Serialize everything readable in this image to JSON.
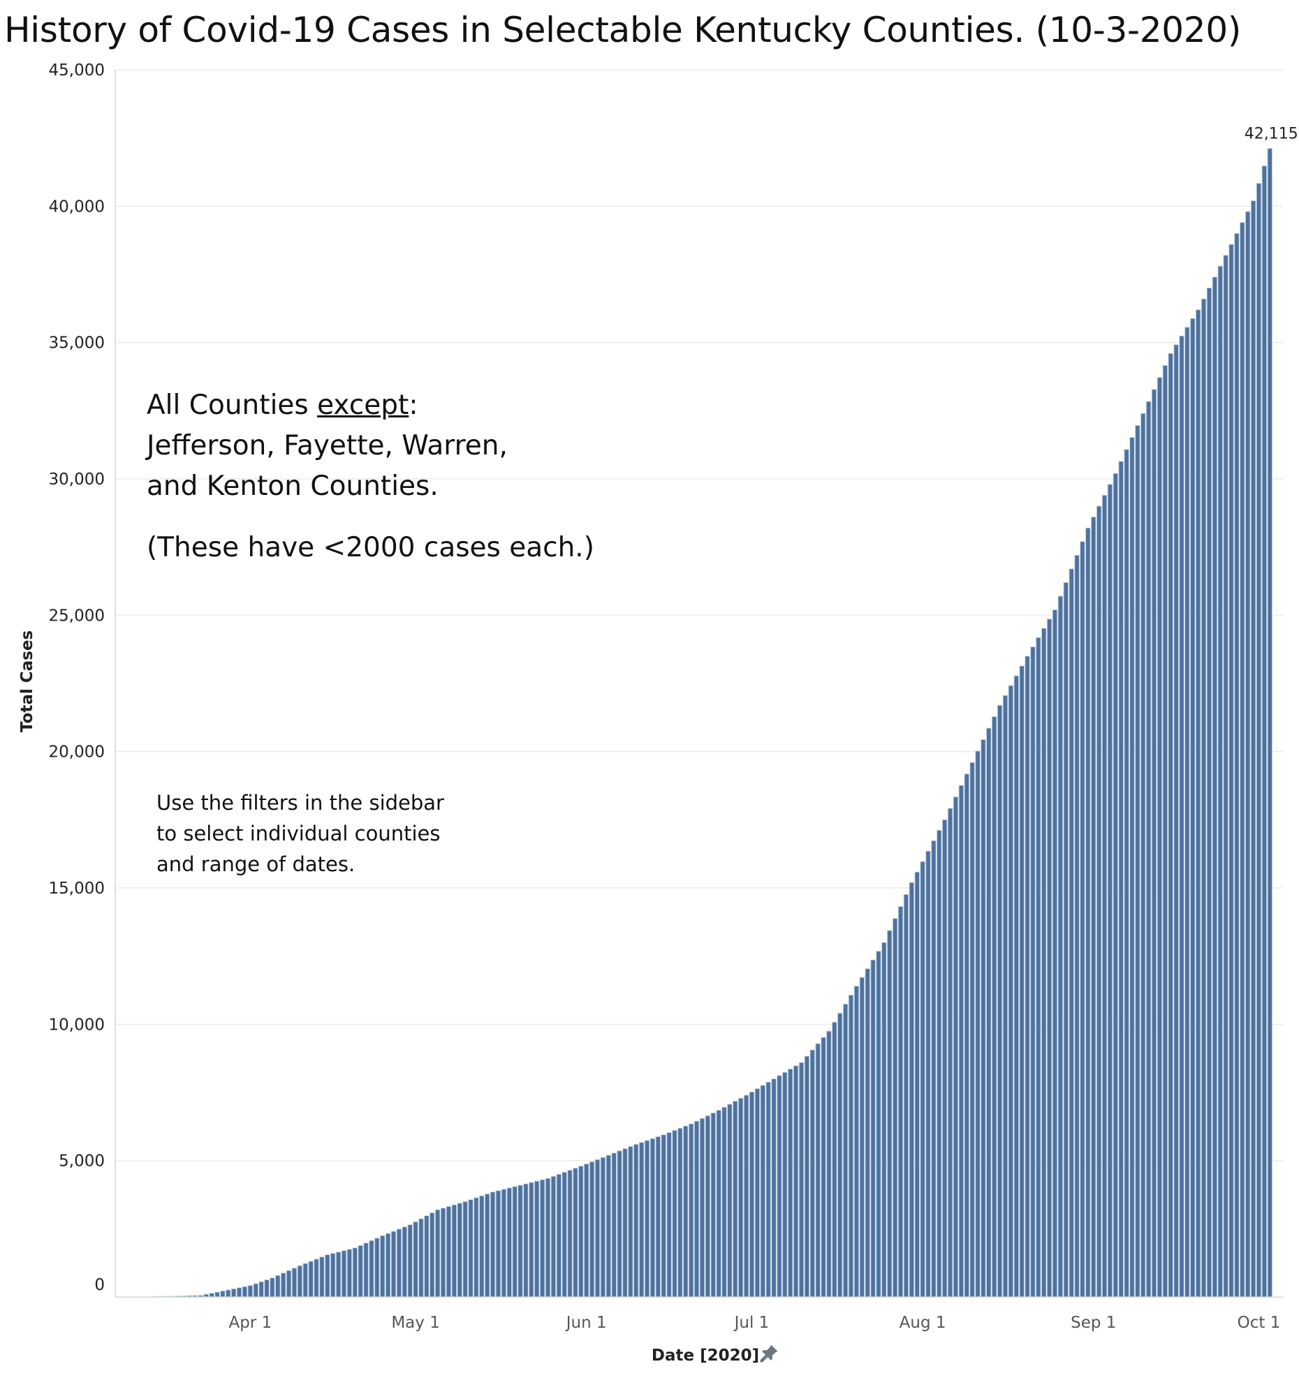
{
  "title": "History of Covid-19 Cases in Selectable Kentucky Counties. (10-3-2020)",
  "annotations": {
    "line1_prefix": "All Counties ",
    "line1_underlined": "except",
    "line1_suffix": ":",
    "line2": "Jefferson, Fayette, Warren,",
    "line3": "and Kenton Counties.",
    "line4": "(These have <2000 cases each.)",
    "hint1": "Use the filters in the sidebar",
    "hint2": "to select individual counties",
    "hint3": "and range of dates."
  },
  "colors": {
    "bar": "#4e729f",
    "bar_edge": "#c4d1e1",
    "grid": "#ececec",
    "axis": "#d6d6d6"
  },
  "icons": {
    "axis_pin": "pin-icon"
  },
  "chart_data": {
    "type": "bar",
    "title": "History of Covid-19 Cases in Selectable Kentucky Counties. (10-3-2020)",
    "xlabel": "Date [2020]",
    "ylabel": "Total Cases",
    "ylim": [
      0,
      45000
    ],
    "yticks": [
      0,
      5000,
      10000,
      15000,
      20000,
      25000,
      30000,
      35000,
      40000,
      45000
    ],
    "ytick_labels": [
      "0",
      "5,000",
      "10,000",
      "15,000",
      "20,000",
      "25,000",
      "30,000",
      "35,000",
      "40,000",
      "45,000"
    ],
    "xticks": [
      {
        "date": "2020-04-01",
        "label": "Apr 1"
      },
      {
        "date": "2020-05-01",
        "label": "May 1"
      },
      {
        "date": "2020-06-01",
        "label": "Jun 1"
      },
      {
        "date": "2020-07-01",
        "label": "Jul 1"
      },
      {
        "date": "2020-08-01",
        "label": "Aug 1"
      },
      {
        "date": "2020-09-01",
        "label": "Sep 1"
      },
      {
        "date": "2020-10-01",
        "label": "Oct 1"
      }
    ],
    "x_range": [
      "2020-03-08",
      "2020-10-05"
    ],
    "grid": true,
    "legend": "none",
    "data_label": {
      "date": "2020-10-03",
      "text": "42,115"
    },
    "series": [
      {
        "points": [
          {
            "x": "2020-03-15",
            "y": 10
          },
          {
            "x": "2020-03-23",
            "y": 60
          },
          {
            "x": "2020-04-01",
            "y": 420
          },
          {
            "x": "2020-04-05",
            "y": 700
          },
          {
            "x": "2020-04-10",
            "y": 1150
          },
          {
            "x": "2020-04-15",
            "y": 1550
          },
          {
            "x": "2020-04-20",
            "y": 1800
          },
          {
            "x": "2020-04-25",
            "y": 2250
          },
          {
            "x": "2020-04-30",
            "y": 2650
          },
          {
            "x": "2020-05-05",
            "y": 3200
          },
          {
            "x": "2020-05-10",
            "y": 3500
          },
          {
            "x": "2020-05-15",
            "y": 3850
          },
          {
            "x": "2020-05-20",
            "y": 4100
          },
          {
            "x": "2020-05-25",
            "y": 4350
          },
          {
            "x": "2020-05-31",
            "y": 4800
          },
          {
            "x": "2020-06-05",
            "y": 5200
          },
          {
            "x": "2020-06-10",
            "y": 5600
          },
          {
            "x": "2020-06-15",
            "y": 5950
          },
          {
            "x": "2020-06-20",
            "y": 6350
          },
          {
            "x": "2020-06-25",
            "y": 6850
          },
          {
            "x": "2020-06-30",
            "y": 7400
          },
          {
            "x": "2020-07-05",
            "y": 8000
          },
          {
            "x": "2020-07-10",
            "y": 8600
          },
          {
            "x": "2020-07-15",
            "y": 9750
          },
          {
            "x": "2020-07-20",
            "y": 11400
          },
          {
            "x": "2020-07-25",
            "y": 13000
          },
          {
            "x": "2020-07-30",
            "y": 15200
          },
          {
            "x": "2020-08-05",
            "y": 17500
          },
          {
            "x": "2020-08-10",
            "y": 19600
          },
          {
            "x": "2020-08-15",
            "y": 21700
          },
          {
            "x": "2020-08-20",
            "y": 23500
          },
          {
            "x": "2020-08-25",
            "y": 25200
          },
          {
            "x": "2020-08-31",
            "y": 28200
          },
          {
            "x": "2020-09-05",
            "y": 30200
          },
          {
            "x": "2020-09-10",
            "y": 32400
          },
          {
            "x": "2020-09-15",
            "y": 34600
          },
          {
            "x": "2020-09-20",
            "y": 36200
          },
          {
            "x": "2020-09-25",
            "y": 38200
          },
          {
            "x": "2020-09-30",
            "y": 40200
          },
          {
            "x": "2020-10-03",
            "y": 42115
          }
        ]
      }
    ]
  }
}
